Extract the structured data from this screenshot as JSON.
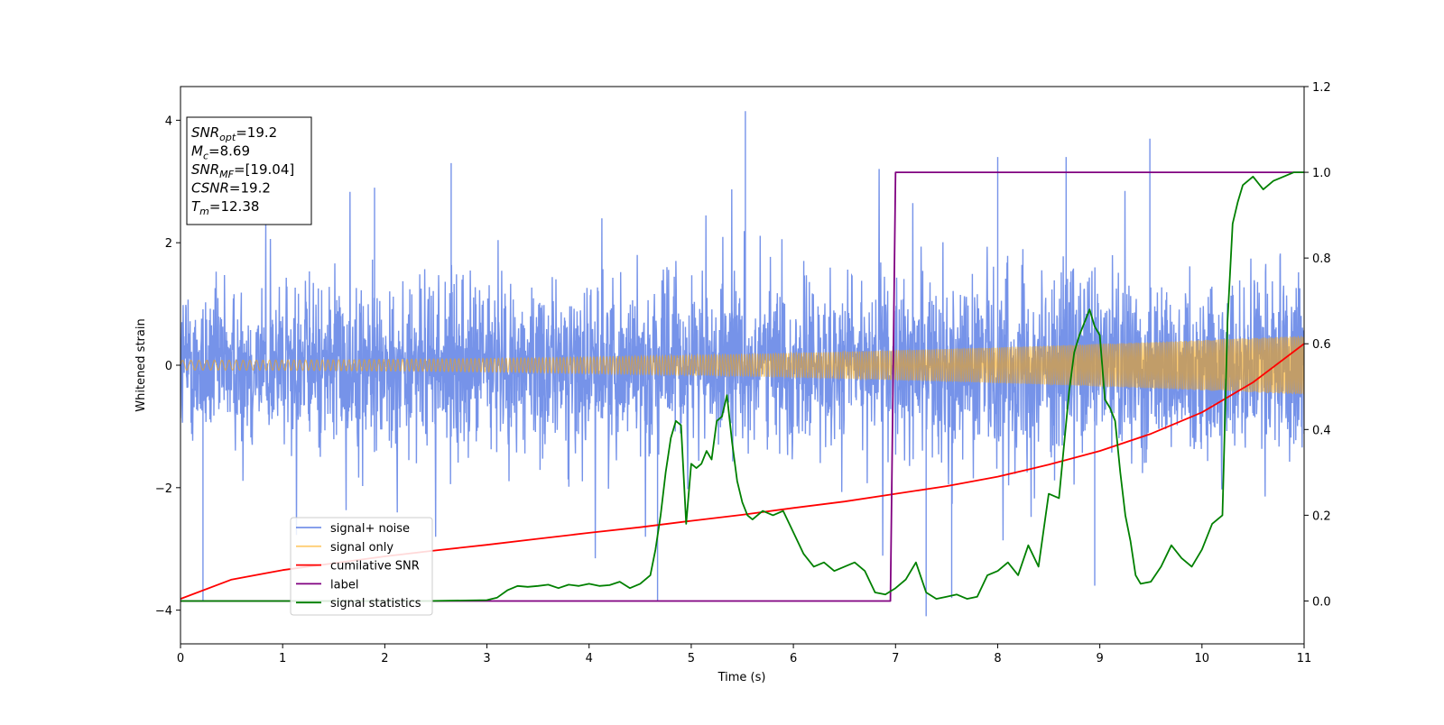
{
  "chart_data": {
    "type": "line",
    "title": "",
    "xlabel": "Time (s)",
    "ylabel": "Whitened strain",
    "xlim": [
      0,
      11
    ],
    "ylim": [
      -4.55,
      4.55
    ],
    "y2lim": [
      -0.1,
      1.2
    ],
    "x_ticks": [
      0,
      1,
      2,
      3,
      4,
      5,
      6,
      7,
      8,
      9,
      10,
      11
    ],
    "y_ticks": [
      -4,
      -2,
      0,
      2,
      4
    ],
    "y2_ticks": [
      "0.0",
      "0.2",
      "0.4",
      "0.6",
      "0.8",
      "1.0",
      "1.2"
    ],
    "grid": false,
    "legend_position": "lower-left",
    "info_box": [
      {
        "sym": "SNR",
        "sub": "opt",
        "value": "=19.2"
      },
      {
        "sym": "M",
        "sub": "c",
        "value": "=8.69"
      },
      {
        "sym": "SNR",
        "sub": "MF",
        "value": "=[19.04]"
      },
      {
        "sym": "CSNR",
        "sub": "",
        "value": "=19.2"
      },
      {
        "sym": "T",
        "sub": "m",
        "value": "=12.38"
      }
    ],
    "series": [
      {
        "name": "signal+ noise",
        "axis": "left",
        "color": "#4169e1",
        "opacity": 0.72,
        "envelope": [
          [
            0.0,
            -2.6,
            2.9
          ],
          [
            0.5,
            -3.1,
            2.8
          ],
          [
            1.0,
            -2.8,
            2.9
          ],
          [
            1.5,
            -2.7,
            2.8
          ],
          [
            2.0,
            -2.9,
            2.9
          ],
          [
            2.5,
            -2.8,
            3.3
          ],
          [
            3.0,
            -2.9,
            3.2
          ],
          [
            3.5,
            -2.9,
            3.2
          ],
          [
            4.0,
            -3.3,
            3.1
          ],
          [
            4.5,
            -2.8,
            3.2
          ],
          [
            5.0,
            -2.8,
            3.1
          ],
          [
            5.5,
            -2.8,
            4.1
          ],
          [
            6.0,
            -2.8,
            3.0
          ],
          [
            6.5,
            -2.9,
            3.0
          ],
          [
            7.0,
            -3.4,
            3.3
          ],
          [
            7.5,
            -3.6,
            3.1
          ],
          [
            8.0,
            -3.0,
            3.3
          ],
          [
            8.5,
            -3.1,
            3.4
          ],
          [
            9.0,
            -3.5,
            3.6
          ],
          [
            9.5,
            -3.2,
            3.4
          ],
          [
            10.0,
            -2.8,
            3.2
          ],
          [
            10.5,
            -2.9,
            3.0
          ],
          [
            11.0,
            -2.6,
            2.9
          ]
        ],
        "peaks": [
          [
            0.22,
            -3.85
          ],
          [
            1.9,
            2.9
          ],
          [
            2.65,
            3.3
          ],
          [
            4.67,
            -3.85
          ],
          [
            5.53,
            4.15
          ],
          [
            7.3,
            -4.1
          ],
          [
            7.55,
            -3.8
          ],
          [
            8.0,
            3.4
          ],
          [
            8.67,
            3.4
          ],
          [
            8.95,
            -3.6
          ],
          [
            9.49,
            3.7
          ]
        ]
      },
      {
        "name": "signal only",
        "axis": "left",
        "color": "#ffa500",
        "opacity": 0.55,
        "f_start": 12,
        "f_end": 38,
        "amp_start": 0.08,
        "amp_end": 0.48
      },
      {
        "name": "cumilative SNR",
        "axis": "right",
        "color": "#ff0000",
        "x": [
          0,
          0.5,
          1,
          1.5,
          2,
          2.5,
          3,
          3.5,
          4,
          4.5,
          5,
          5.5,
          6,
          6.5,
          7,
          7.5,
          8,
          8.5,
          9,
          9.5,
          10,
          10.5,
          11
        ],
        "y": [
          0.005,
          0.05,
          0.072,
          0.088,
          0.104,
          0.118,
          0.131,
          0.145,
          0.159,
          0.172,
          0.187,
          0.201,
          0.217,
          0.232,
          0.25,
          0.268,
          0.29,
          0.318,
          0.35,
          0.39,
          0.44,
          0.51,
          0.6
        ]
      },
      {
        "name": "label",
        "axis": "right",
        "color": "#800080",
        "x": [
          0,
          6.95,
          7.0,
          11
        ],
        "y": [
          0,
          0,
          1,
          1
        ]
      },
      {
        "name": "signal statistics",
        "axis": "right",
        "color": "#008000",
        "x": [
          0,
          2.4,
          3.0,
          3.1,
          3.2,
          3.3,
          3.4,
          3.5,
          3.6,
          3.7,
          3.8,
          3.9,
          4.0,
          4.1,
          4.2,
          4.3,
          4.4,
          4.5,
          4.6,
          4.65,
          4.7,
          4.75,
          4.8,
          4.85,
          4.9,
          4.95,
          5.0,
          5.05,
          5.1,
          5.15,
          5.2,
          5.25,
          5.3,
          5.35,
          5.4,
          5.45,
          5.5,
          5.55,
          5.6,
          5.7,
          5.8,
          5.9,
          6.0,
          6.1,
          6.2,
          6.3,
          6.4,
          6.5,
          6.6,
          6.7,
          6.8,
          6.9,
          7.0,
          7.1,
          7.2,
          7.3,
          7.4,
          7.5,
          7.6,
          7.7,
          7.8,
          7.9,
          8.0,
          8.1,
          8.2,
          8.3,
          8.4,
          8.5,
          8.6,
          8.7,
          8.75,
          8.8,
          8.85,
          8.9,
          8.95,
          9.0,
          9.05,
          9.1,
          9.15,
          9.2,
          9.25,
          9.3,
          9.35,
          9.4,
          9.5,
          9.6,
          9.7,
          9.8,
          9.9,
          10.0,
          10.1,
          10.2,
          10.25,
          10.3,
          10.35,
          10.4,
          10.5,
          10.6,
          10.7,
          10.8,
          10.9,
          11.0
        ],
        "y": [
          0.0,
          0.0,
          0.002,
          0.008,
          0.025,
          0.035,
          0.033,
          0.035,
          0.038,
          0.03,
          0.038,
          0.035,
          0.04,
          0.035,
          0.037,
          0.045,
          0.03,
          0.04,
          0.06,
          0.12,
          0.2,
          0.3,
          0.38,
          0.42,
          0.41,
          0.18,
          0.32,
          0.31,
          0.32,
          0.35,
          0.33,
          0.42,
          0.43,
          0.48,
          0.37,
          0.28,
          0.23,
          0.2,
          0.19,
          0.21,
          0.2,
          0.21,
          0.16,
          0.11,
          0.08,
          0.09,
          0.07,
          0.08,
          0.09,
          0.07,
          0.02,
          0.015,
          0.03,
          0.05,
          0.09,
          0.02,
          0.005,
          0.01,
          0.015,
          0.005,
          0.01,
          0.06,
          0.07,
          0.09,
          0.06,
          0.13,
          0.08,
          0.25,
          0.24,
          0.49,
          0.58,
          0.62,
          0.65,
          0.68,
          0.64,
          0.62,
          0.47,
          0.45,
          0.42,
          0.3,
          0.2,
          0.14,
          0.06,
          0.04,
          0.045,
          0.08,
          0.13,
          0.1,
          0.08,
          0.12,
          0.18,
          0.2,
          0.65,
          0.88,
          0.93,
          0.97,
          0.99,
          0.96,
          0.98,
          0.99,
          1.0,
          1.0
        ]
      }
    ]
  }
}
